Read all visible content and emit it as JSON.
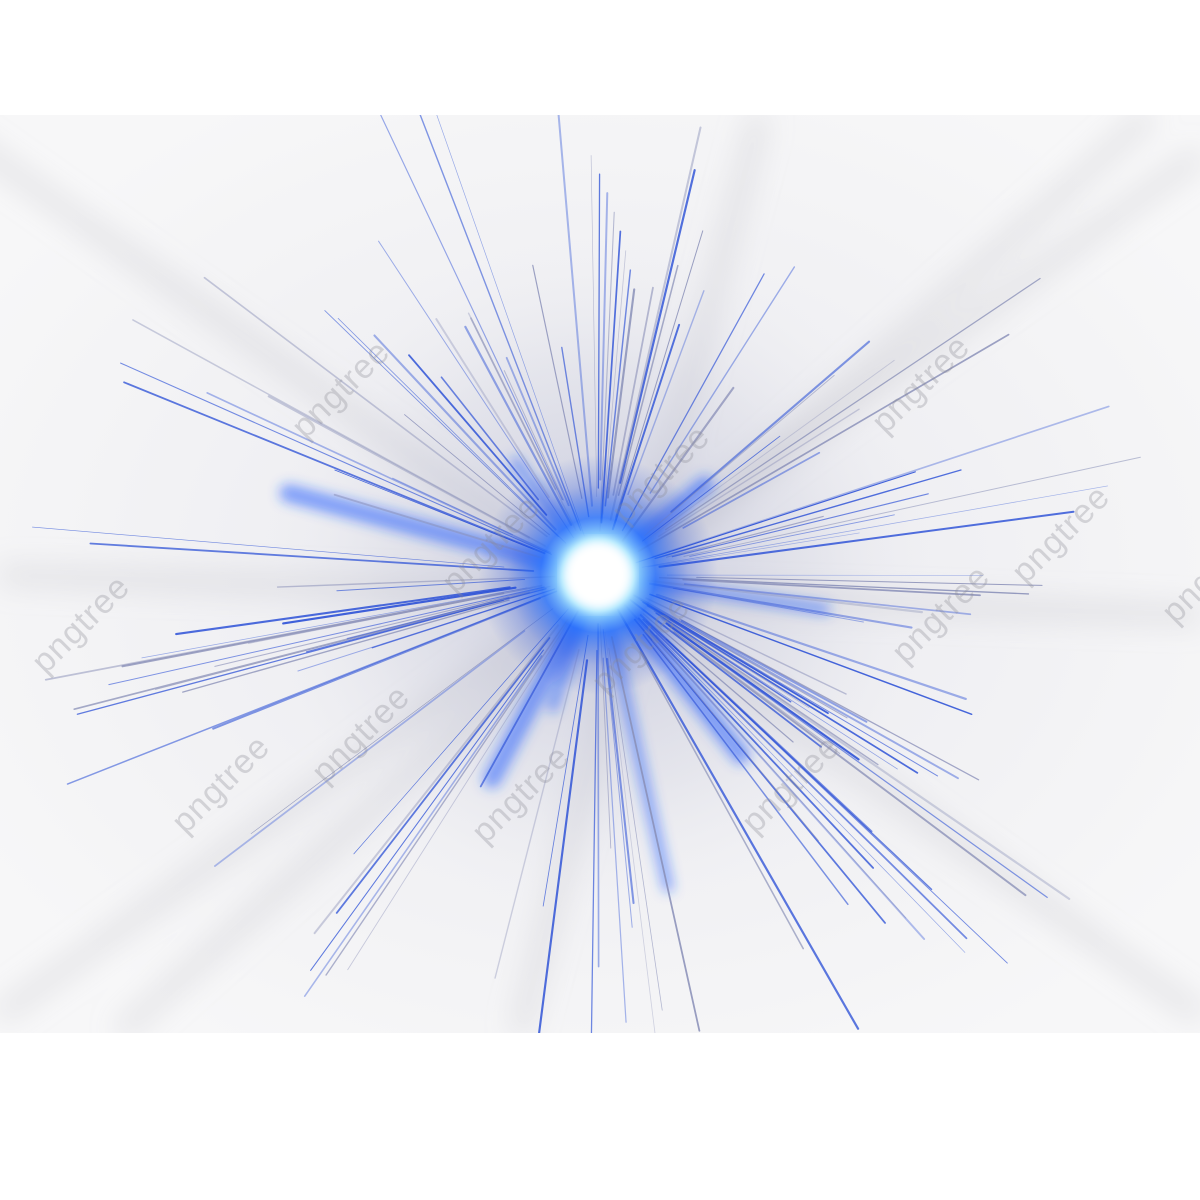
{
  "image": {
    "subject": "blue light starburst",
    "background_color": "#ffffff",
    "panel_color": "#f1f1f3",
    "core_color": "#ffffff",
    "glow_color": "#1e5cff",
    "ray_color": "#2a4fd6",
    "shadow_ray_color": "#b9b9c4"
  },
  "watermark": {
    "text": "pngtree"
  }
}
